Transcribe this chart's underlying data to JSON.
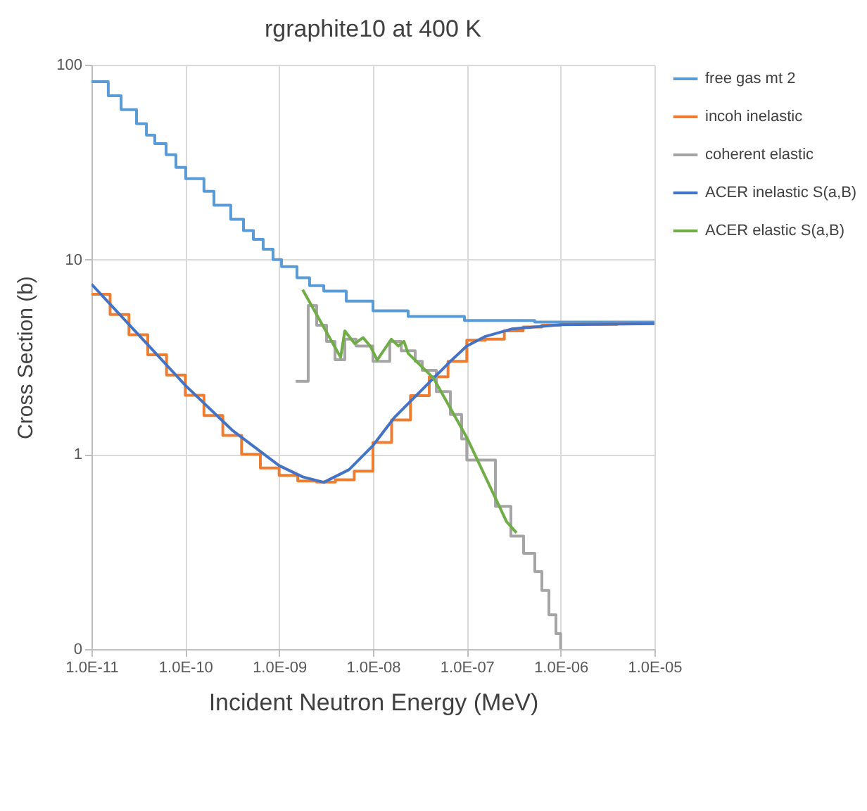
{
  "chart_data": {
    "type": "line",
    "title": "rgraphite10 at 400 K",
    "xlabel": "Incident Neutron Energy (MeV)",
    "ylabel": "Cross Section (b)",
    "log": "xy",
    "grid": true,
    "legend": "right",
    "xlim": [
      1e-11,
      1e-05
    ],
    "xticks": [
      {
        "value": 1e-11,
        "label": "1.0E-11"
      },
      {
        "value": 1e-10,
        "label": "1.0E-10"
      },
      {
        "value": 1e-09,
        "label": "1.0E-09"
      },
      {
        "value": 1e-08,
        "label": "1.0E-08"
      },
      {
        "value": 1e-07,
        "label": "1.0E-07"
      },
      {
        "value": 1e-06,
        "label": "1.0E-06"
      },
      {
        "value": 1e-05,
        "label": "1.0E-05"
      }
    ],
    "ylim": [
      0.1,
      100
    ],
    "yticks": [
      {
        "value": 0.1,
        "label": "0"
      },
      {
        "value": 1,
        "label": "1"
      },
      {
        "value": 10,
        "label": "10"
      },
      {
        "value": 100,
        "label": "100"
      }
    ],
    "series": [
      {
        "name": "free gas mt 2",
        "type": "step",
        "color": "#5b9bd5",
        "x": [
          1e-11,
          1.51e-11,
          2.07e-11,
          3.02e-11,
          3.85e-11,
          4.73e-11,
          6.24e-11,
          7.94e-11,
          1.01e-10,
          1.58e-10,
          2.02e-10,
          3.05e-10,
          4.17e-10,
          5.31e-10,
          6.76e-10,
          8.61e-10,
          1.06e-09,
          1.55e-09,
          2.11e-09,
          2.99e-09,
          5.19e-09,
          1e-08,
          2.37e-08,
          9.44e-08,
          5.3e-07,
          1e-05
        ],
        "values": [
          81.9,
          69.3,
          58.8,
          49.8,
          43.5,
          39.4,
          34.5,
          29.7,
          26.0,
          22.4,
          19.0,
          16.1,
          14.1,
          12.7,
          11.3,
          10,
          9.2,
          8.06,
          7.34,
          6.88,
          6.12,
          5.45,
          5.1,
          4.86,
          4.77,
          4.69
        ]
      },
      {
        "name": "incoh inelastic",
        "type": "step",
        "color": "#ed7d31",
        "x": [
          1e-11,
          1.58e-11,
          2.51e-11,
          3.98e-11,
          6.31e-11,
          1e-10,
          1.58e-10,
          2.51e-10,
          3.98e-10,
          6.31e-10,
          1e-09,
          1.58e-09,
          2.51e-09,
          3.98e-09,
          6.31e-09,
          1e-08,
          1.58e-08,
          2.51e-08,
          3.98e-08,
          6.31e-08,
          1e-07,
          1.58e-07,
          2.51e-07,
          3.98e-07,
          6.31e-07,
          1e-06,
          3.98e-06,
          1e-05
        ],
        "values": [
          6.63,
          5.22,
          4.11,
          3.24,
          2.55,
          2.01,
          1.58,
          1.25,
          1.0,
          0.85,
          0.78,
          0.73,
          0.72,
          0.74,
          0.82,
          1.15,
          1.5,
          2.0,
          2.5,
          3.0,
          3.85,
          3.9,
          4.3,
          4.5,
          4.6,
          4.65,
          4.7,
          4.7
        ]
      },
      {
        "name": "coherent elastic",
        "type": "step",
        "color": "#a5a5a5",
        "x": [
          1.5e-09,
          2.04e-09,
          2.51e-09,
          3.2e-09,
          3.94e-09,
          5.01e-09,
          6.61e-09,
          1e-08,
          1.51e-08,
          2e-08,
          2.82e-08,
          3.35e-08,
          4.73e-08,
          6.68e-08,
          8.81e-08,
          1e-07,
          2.02e-07,
          2.95e-07,
          4.03e-07,
          5.31e-07,
          6.31e-07,
          7.5e-07,
          8.91e-07,
          1e-06
        ],
        "values": [
          2.37,
          5.8,
          4.6,
          3.8,
          3.06,
          3.9,
          3.6,
          3.0,
          3.8,
          3.4,
          3.0,
          2.7,
          2.1,
          1.6,
          1.2,
          0.935,
          0.54,
          0.38,
          0.31,
          0.25,
          0.2,
          0.15,
          0.12,
          0.1
        ]
      },
      {
        "name": "ACER inelastic S(a,B)",
        "type": "line",
        "color": "#4472c4",
        "x": [
          1e-11,
          3.35e-11,
          1e-10,
          3.16e-10,
          1e-09,
          1.78e-09,
          2.99e-09,
          5.56e-09,
          1e-08,
          1.68e-08,
          4.42e-08,
          6.68e-08,
          1e-07,
          1.58e-07,
          3e-07,
          1e-06,
          1e-05
        ],
        "values": [
          7.48,
          4.0,
          2.26,
          1.33,
          0.875,
          0.766,
          0.718,
          0.834,
          1.11,
          1.54,
          2.46,
          3.0,
          3.6,
          4.03,
          4.4,
          4.63,
          4.69
        ]
      },
      {
        "name": "ACER elastic S(a,B)",
        "type": "line",
        "color": "#70ad47",
        "x": [
          1.78e-09,
          4.52e-09,
          5.01e-09,
          6.38e-09,
          7.85e-09,
          9.33e-09,
          1.11e-08,
          1.57e-08,
          1.86e-08,
          2.14e-08,
          2.37e-08,
          4.42e-08,
          1e-07,
          2.66e-07,
          3.39e-07
        ],
        "values": [
          7.0,
          3.15,
          4.3,
          3.7,
          3.97,
          3.6,
          3.05,
          3.9,
          3.6,
          3.8,
          3.3,
          2.46,
          1.22,
          0.45,
          0.395
        ]
      }
    ]
  }
}
